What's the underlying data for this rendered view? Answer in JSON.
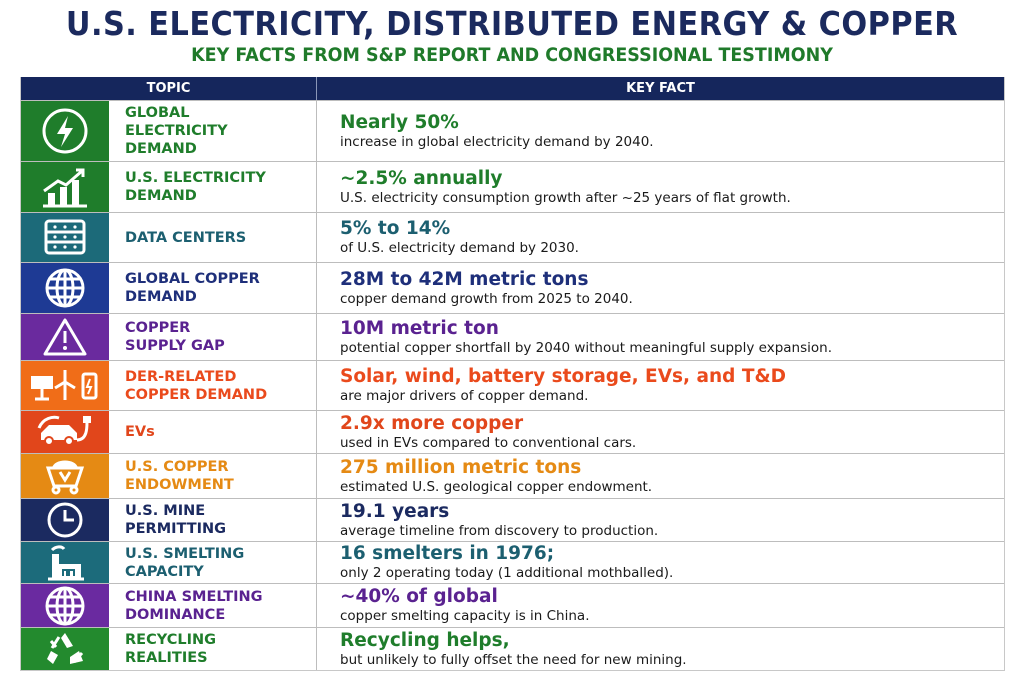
{
  "title": "U.S. ELECTRICITY, DISTRIBUTED ENERGY & COPPER",
  "subtitle": "KEY FACTS FROM S&P REPORT AND CONGRESSIONAL TESTIMONY",
  "columns": {
    "topic": "TOPIC",
    "fact": "KEY FACT"
  },
  "rows": [
    {
      "icon": "lightning-icon",
      "color": "#1f7d2b",
      "text_color": "#1f7d2b",
      "topic": "GLOBAL\nELECTRICITY\nDEMAND",
      "headline": "Nearly 50%",
      "detail": "increase in global electricity demand by 2040."
    },
    {
      "icon": "growth-chart-icon",
      "color": "#1f7d2b",
      "text_color": "#1f7d2b",
      "topic": "U.S. ELECTRICITY\nDEMAND",
      "headline": "~2.5% annually",
      "detail": "U.S. electricity consumption growth after ~25 years of flat growth."
    },
    {
      "icon": "server-rack-icon",
      "color": "#1c6a79",
      "text_color": "#1c5f70",
      "topic": "DATA CENTERS",
      "headline": "5% to 14%",
      "detail": "of U.S. electricity demand by 2030."
    },
    {
      "icon": "globe-icon",
      "color": "#1e3a94",
      "text_color": "#1e2f7a",
      "topic": "GLOBAL COPPER\nDEMAND",
      "headline": "28M to 42M metric tons",
      "detail": "copper demand growth from 2025 to 2040."
    },
    {
      "icon": "warning-icon",
      "color": "#6a2a9e",
      "text_color": "#5a2290",
      "topic": "COPPER\nSUPPLY GAP",
      "headline": "10M metric ton",
      "detail": "potential copper shortfall by 2040 without meaningful supply expansion."
    },
    {
      "icon": "solar-wind-battery-icon",
      "color": "#f06d18",
      "text_color": "#ea4a1c",
      "topic": "DER-RELATED\nCOPPER DEMAND",
      "headline": "Solar, wind, battery storage, EVs, and T&D",
      "detail": "are major drivers of copper demand."
    },
    {
      "icon": "electric-car-icon",
      "color": "#e1461b",
      "text_color": "#e1461b",
      "topic": "EVs",
      "headline": "2.9x more copper",
      "detail": "used in EVs compared to conventional cars."
    },
    {
      "icon": "mine-cart-icon",
      "color": "#e58a14",
      "text_color": "#e58a14",
      "topic": "U.S. COPPER\nENDOWMENT",
      "headline": "275 million metric tons",
      "detail": "estimated U.S. geological copper endowment."
    },
    {
      "icon": "clock-icon",
      "color": "#1b2a60",
      "text_color": "#1b2a60",
      "topic": "U.S. MINE\nPERMITTING",
      "headline": "19.1 years",
      "detail": "average timeline from discovery to production."
    },
    {
      "icon": "factory-icon",
      "color": "#1c6b7b",
      "text_color": "#1c5f70",
      "topic": "U.S. SMELTING\nCAPACITY",
      "headline": "16 smelters in 1976;",
      "detail": "only 2 operating today (1 additional mothballed)."
    },
    {
      "icon": "globe-icon",
      "color": "#6a2aa0",
      "text_color": "#5a2290",
      "topic": "CHINA SMELTING\nDOMINANCE",
      "headline": "~40% of global",
      "detail": "copper smelting capacity is in China."
    },
    {
      "icon": "recycle-icon",
      "color": "#238a2e",
      "text_color": "#1f7d2b",
      "topic": "RECYCLING\nREALITIES",
      "headline": "Recycling helps,",
      "detail": "but unlikely to fully offset the need for new mining."
    }
  ]
}
